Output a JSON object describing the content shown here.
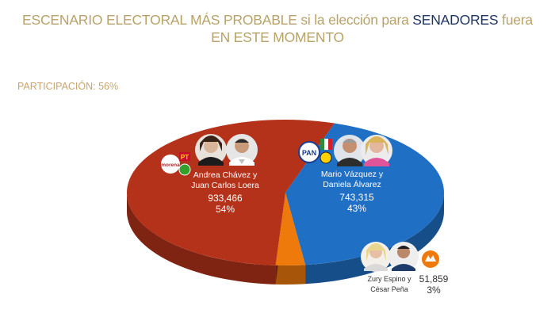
{
  "title": {
    "part1": "ESCENARIO ELECTORAL MÁS PROBABLE si la elección para ",
    "highlight": "SENADORES",
    "part2": " fuera",
    "line2": "EN ESTE MOMENTO"
  },
  "participation": "PARTICIPACIÓN: 56%",
  "colors": {
    "title": "#b8a26a",
    "highlight": "#1f3566",
    "morena_coalition": "#b5321a",
    "pan_coalition": "#1f6fc4",
    "mc": "#ee7a0c"
  },
  "chart_data": {
    "type": "pie",
    "style": "3d",
    "participation_pct": 56,
    "slices": [
      {
        "candidates": [
          "Andrea Chávez y",
          "Juan Carlos Loera"
        ],
        "parties": [
          "morena",
          "PT",
          "PVEM"
        ],
        "votes": "933,466",
        "percent": "54%",
        "value": 54,
        "color": "#b5321a"
      },
      {
        "candidates": [
          "Mario Vázquez y",
          "Daniela Álvarez"
        ],
        "parties": [
          "PAN",
          "PRI",
          "PRD"
        ],
        "votes": "743,315",
        "percent": "43%",
        "value": 43,
        "color": "#1f6fc4"
      },
      {
        "candidates": [
          "Zury Espino y",
          "César Peña"
        ],
        "parties": [
          "MC"
        ],
        "votes": "51,859",
        "percent": "3%",
        "value": 3,
        "color": "#ee7a0c"
      }
    ]
  },
  "logos": {
    "morena": "morena",
    "pt": "PT",
    "pan": "PAN"
  }
}
